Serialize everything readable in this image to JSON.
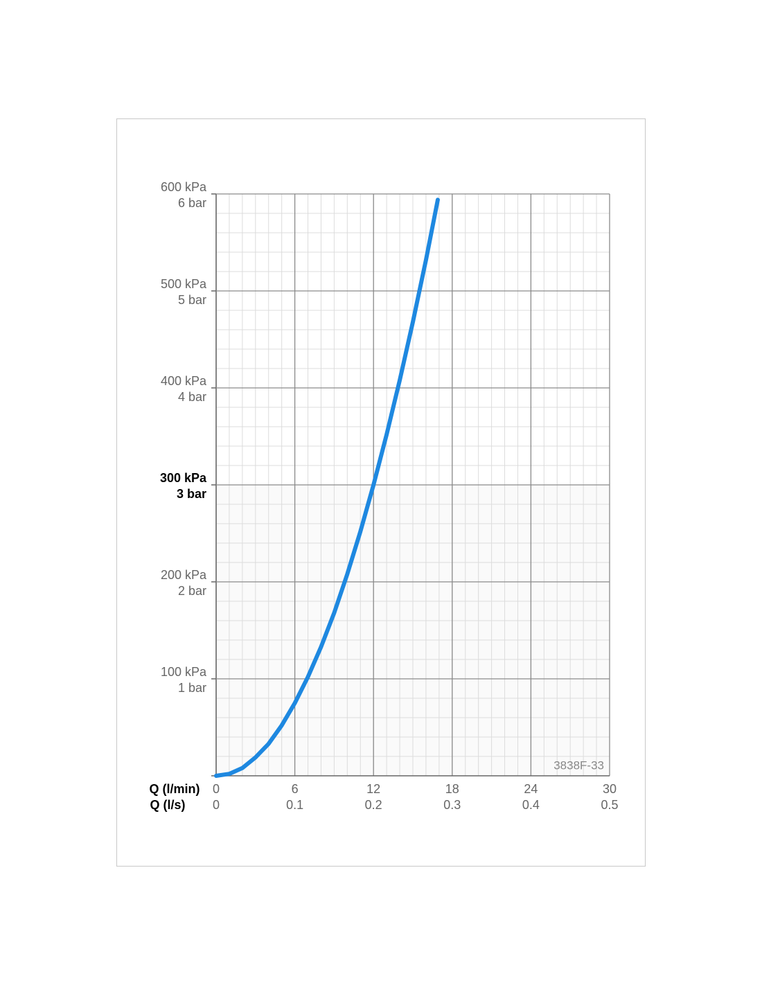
{
  "chart_data": {
    "type": "line",
    "x_label": "Q (l/min)",
    "x2_label": "Q (l/s)",
    "annotation": "3838F-33",
    "x": [
      0,
      1,
      2,
      3,
      4,
      5,
      6,
      7,
      8,
      9,
      10,
      11,
      12,
      13,
      14,
      15,
      16,
      16.9
    ],
    "series": [
      {
        "color": "#1e88e0",
        "values": [
          0,
          2,
          8,
          19,
          33,
          52,
          75,
          102,
          133,
          168,
          208,
          252,
          300,
          352,
          408,
          468,
          532,
          594
        ]
      }
    ],
    "xlim": [
      0,
      30
    ],
    "xticks": [
      0,
      6,
      12,
      18,
      24,
      30
    ],
    "x2lim": [
      0,
      0.5
    ],
    "x2ticks": [
      0,
      0.1,
      0.2,
      0.3,
      0.4,
      0.5
    ],
    "ylim": [
      0,
      600
    ],
    "yticks": [
      {
        "value": 100,
        "label": "100 kPa"
      },
      {
        "value": 200,
        "label": "200 kPa"
      },
      {
        "value": 300,
        "label": "300 kPa"
      },
      {
        "value": 400,
        "label": "400 kPa"
      },
      {
        "value": 500,
        "label": "500 kPa"
      },
      {
        "value": 600,
        "label": "600 kPa"
      }
    ],
    "y2lim": [
      0,
      6
    ],
    "y2ticks": [
      {
        "value": 1,
        "label": "1 bar"
      },
      {
        "value": 2,
        "label": "2 bar"
      },
      {
        "value": 3,
        "label": "3 bar"
      },
      {
        "value": 4,
        "label": "4 bar"
      },
      {
        "value": 5,
        "label": "5 bar"
      },
      {
        "value": 6,
        "label": "6 bar"
      }
    ],
    "bold_ytick_value": 300,
    "grid": true,
    "minor_grid": {
      "x": 1,
      "y": 20
    }
  }
}
